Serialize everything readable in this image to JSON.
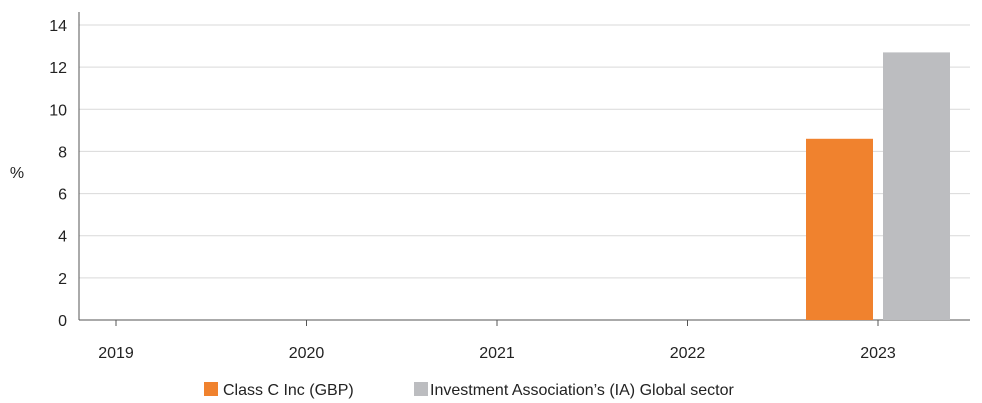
{
  "chart_data": {
    "type": "bar",
    "categories": [
      "2019",
      "2020",
      "2021",
      "2022",
      "2023"
    ],
    "series": [
      {
        "name": "Class C Inc (GBP)",
        "color": "#f0822e",
        "values": [
          null,
          null,
          null,
          null,
          8.6
        ]
      },
      {
        "name": "Investment Association’s (IA) Global sector",
        "color": "#bcbdc0",
        "values": [
          null,
          null,
          null,
          null,
          12.7
        ]
      }
    ],
    "ylabel": "%",
    "ylim": [
      0,
      14
    ],
    "yticks": [
      0,
      2,
      4,
      6,
      8,
      10,
      12,
      14
    ],
    "grid": true,
    "legend_position": "bottom-center"
  }
}
